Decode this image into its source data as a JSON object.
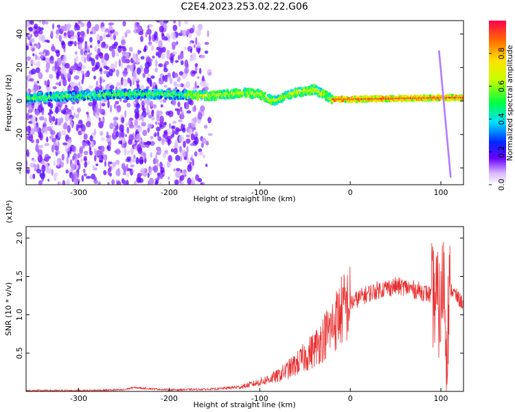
{
  "title": "C2E4.2023.253.02.22.G06",
  "chart_data": [
    {
      "type": "heatmap",
      "xlabel": "Height of straight line (km)",
      "ylabel": "Frequency (Hz)",
      "xlim": [
        -358,
        125
      ],
      "ylim": [
        -50,
        48
      ],
      "xticks": [
        "-300",
        "-200",
        "-100",
        "0",
        "100"
      ],
      "yticks": [
        "40",
        "20",
        "0",
        "-20",
        "-40"
      ],
      "colorbar": {
        "label": "Normalized spectral amplitude",
        "range": [
          0.0,
          1.0
        ],
        "ticks": [
          "0.0",
          "0.2",
          "0.4",
          "0.6",
          "0.8"
        ]
      },
      "ridge": [
        {
          "x": -300,
          "y": 3
        },
        {
          "x": -250,
          "y": 4
        },
        {
          "x": -200,
          "y": 4
        },
        {
          "x": -150,
          "y": 3
        },
        {
          "x": -120,
          "y": 5
        },
        {
          "x": -100,
          "y": 4
        },
        {
          "x": -85,
          "y": 0
        },
        {
          "x": -60,
          "y": 5
        },
        {
          "x": -40,
          "y": 7
        },
        {
          "x": -20,
          "y": 1
        },
        {
          "x": 0,
          "y": 1
        },
        {
          "x": 50,
          "y": 1.5
        },
        {
          "x": 100,
          "y": 2
        },
        {
          "x": 125,
          "y": 2
        }
      ],
      "grid": false,
      "legend": "colorbar-right"
    },
    {
      "type": "line",
      "xlabel": "Height of straight line (km)",
      "ylabel": "SNR (10 * v/v)",
      "multiplier": "(x10⁴)",
      "xlim": [
        -358,
        125
      ],
      "ylim": [
        0.0,
        2.15
      ],
      "xticks": [
        "-300",
        "-200",
        "-100",
        "0",
        "100"
      ],
      "yticks": [
        "2.0",
        "1.5",
        "1.0",
        "0.5"
      ],
      "series": [
        {
          "color": "#e83030",
          "x": [
            -358,
            -300,
            -250,
            -240,
            -200,
            -150,
            -120,
            -100,
            -80,
            -60,
            -40,
            -20,
            -10,
            0,
            10,
            20,
            30,
            40,
            50,
            60,
            70,
            80,
            90,
            95,
            100,
            103,
            106,
            110,
            120,
            125
          ],
          "y": [
            0.01,
            0.01,
            0.02,
            0.05,
            0.02,
            0.03,
            0.06,
            0.12,
            0.2,
            0.35,
            0.55,
            0.85,
            1.05,
            1.15,
            1.22,
            1.28,
            1.32,
            1.35,
            1.37,
            1.36,
            1.33,
            1.3,
            1.25,
            1.2,
            1.0,
            1.6,
            0.6,
            1.35,
            1.2,
            1.15
          ]
        }
      ],
      "grid": false
    }
  ]
}
